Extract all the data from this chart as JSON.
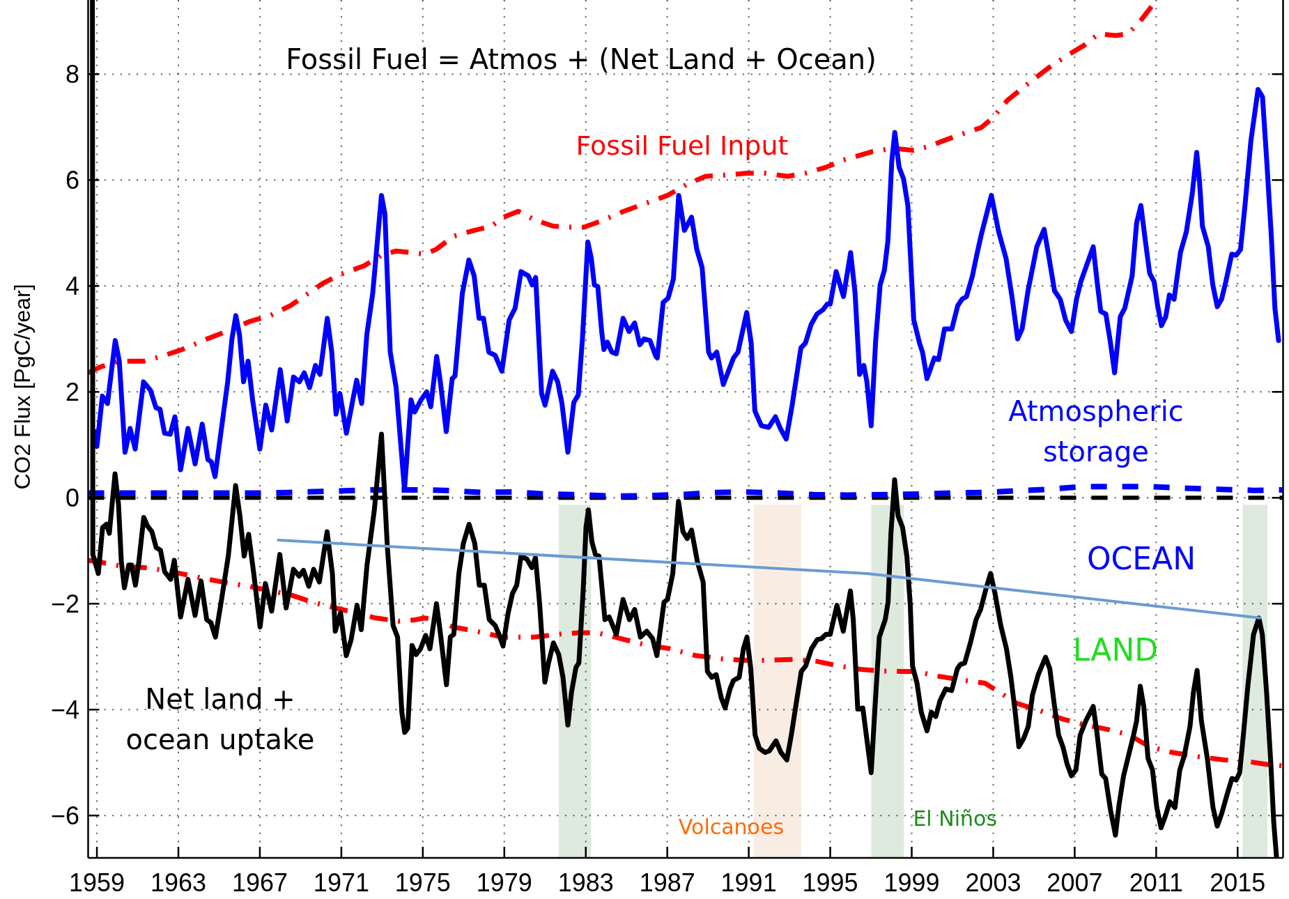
{
  "chart_data": {
    "type": "line",
    "title": "Fossil Fuel = Atmos + (Net Land + Ocean)",
    "ylabel": "CO2 Flux [PgC/year]",
    "xlim": [
      1958.57,
      2017.23
    ],
    "ylim": [
      -6.8,
      9.4
    ],
    "xticks": [
      1959,
      1963,
      1967,
      1971,
      1975,
      1979,
      1983,
      1987,
      1991,
      1995,
      1999,
      2003,
      2007,
      2011,
      2015
    ],
    "yticks": [
      {
        "value": -6,
        "label": "−6"
      },
      {
        "value": -4,
        "label": "−4"
      },
      {
        "value": -2,
        "label": "−2"
      },
      0,
      2,
      4,
      6,
      8
    ],
    "grid": true,
    "marker": "none",
    "series": [
      {
        "name": "Fossil Fuel Input",
        "color": "#ff0000",
        "line_style": "dashed",
        "x": [
          1958.58,
          1959.16,
          1960.02,
          1960.6,
          1961.32,
          1962.32,
          1963.19,
          1964.34,
          1965.49,
          1966.5,
          1967.5,
          1968.51,
          1969.37,
          1970.09,
          1970.96,
          1972.11,
          1972.97,
          1973.69,
          1974.41,
          1975.1,
          1975.65,
          1976.51,
          1977.52,
          1978.38,
          1978.96,
          1979.68,
          1980.54,
          1981.4,
          1982.27,
          1982.91,
          1983.71,
          1984.86,
          1986.01,
          1987.01,
          1988.02,
          1988.88,
          1990.04,
          1990.9,
          1991.76,
          1992.91,
          1993.78,
          1994.78,
          1995.65,
          1996.3,
          1997.09,
          1998.09,
          1999.1,
          1999.96,
          2000.68,
          2001.69,
          2002.41,
          2002.99,
          2003.71,
          2004.71,
          2005.72,
          2006.58,
          2007.45,
          2008.17,
          2009.03,
          2009.6,
          2010.18,
          2010.9,
          2011.11
        ],
        "values": [
          2.36,
          2.47,
          2.57,
          2.58,
          2.58,
          2.69,
          2.8,
          2.99,
          3.16,
          3.33,
          3.44,
          3.63,
          3.86,
          4.05,
          4.22,
          4.38,
          4.58,
          4.66,
          4.63,
          4.6,
          4.69,
          4.94,
          5.05,
          5.13,
          5.3,
          5.41,
          5.24,
          5.13,
          5.11,
          5.11,
          5.22,
          5.41,
          5.57,
          5.71,
          5.93,
          6.07,
          6.1,
          6.13,
          6.13,
          6.07,
          6.13,
          6.24,
          6.38,
          6.45,
          6.54,
          6.6,
          6.56,
          6.65,
          6.76,
          6.9,
          6.99,
          7.18,
          7.51,
          7.82,
          8.12,
          8.34,
          8.54,
          8.76,
          8.73,
          8.76,
          8.98,
          9.34,
          9.4
        ]
      },
      {
        "color": "#ff0000",
        "line_style": "dashed",
        "x": [
          1958.57,
          1959.07,
          1960.2,
          1961.34,
          1962.33,
          1963.47,
          1964.46,
          1965.6,
          1966.45,
          1967.58,
          1968.57,
          1969.57,
          1970.7,
          1971.7,
          1972.69,
          1973.82,
          1974.53,
          1975.07,
          1975.64,
          1976.49,
          1977.62,
          1978.9,
          1980.46,
          1981.6,
          1982.59,
          1983.58,
          1984.72,
          1985.85,
          1987.13,
          1988.4,
          1989.68,
          1990.82,
          1991.81,
          1993.23,
          1994.36,
          1995.5,
          1996.5,
          1997.5,
          1998.5,
          1999.18,
          2000.32,
          2001.6,
          2002.59,
          2003.3,
          2004.15,
          2005.28,
          2006.42,
          2007.55,
          2008.69,
          2009.68,
          2010.67,
          2011.8,
          2013.09,
          2014.36,
          2015.5,
          2016.35,
          2017.2
        ],
        "values": [
          -1.18,
          -1.21,
          -1.29,
          -1.32,
          -1.37,
          -1.46,
          -1.54,
          -1.62,
          -1.67,
          -1.76,
          -1.84,
          -1.97,
          -2.08,
          -2.17,
          -2.27,
          -2.33,
          -2.31,
          -2.27,
          -2.3,
          -2.44,
          -2.52,
          -2.63,
          -2.63,
          -2.58,
          -2.55,
          -2.55,
          -2.66,
          -2.77,
          -2.85,
          -2.98,
          -3.04,
          -3.07,
          -3.07,
          -3.05,
          -3.09,
          -3.18,
          -3.24,
          -3.27,
          -3.28,
          -3.28,
          -3.37,
          -3.45,
          -3.5,
          -3.67,
          -3.88,
          -4.02,
          -4.18,
          -4.29,
          -4.38,
          -4.48,
          -4.7,
          -4.81,
          -4.89,
          -4.95,
          -4.98,
          -5.03,
          -5.06
        ]
      },
      {
        "color": "#0000ff",
        "line_style": "dashed",
        "x": [
          1958.57,
          1962,
          1967,
          1968.4,
          1970,
          1972.7,
          1974.5,
          1976.1,
          1977.9,
          1979.5,
          1981,
          1982.6,
          1984.3,
          1986.1,
          1987.7,
          1989.3,
          1990.8,
          1992.5,
          1994.2,
          1995.8,
          1997.8,
          1999.3,
          2000.9,
          2002.6,
          2004.1,
          2005.7,
          2007.3,
          2009.1,
          2010.7,
          2012.4,
          2014.1,
          2015.8,
          2017.2
        ],
        "values": [
          0.09,
          0.09,
          0.09,
          0.1,
          0.12,
          0.15,
          0.15,
          0.14,
          0.1,
          0.11,
          0.07,
          0.06,
          0.03,
          0.04,
          0.06,
          0.1,
          0.11,
          0.09,
          0.06,
          0.05,
          0.06,
          0.07,
          0.09,
          0.1,
          0.13,
          0.16,
          0.21,
          0.21,
          0.21,
          0.18,
          0.16,
          0.14,
          0.15
        ]
      },
      {
        "name": "Atmospheric storage",
        "color": "#0000ff",
        "line_style": "solid",
        "x": [
          1958.88,
          1959.0,
          1959.27,
          1959.52,
          1959.9,
          1960.1,
          1960.38,
          1960.63,
          1960.88,
          1961.29,
          1961.63,
          1961.9,
          1962.1,
          1962.32,
          1962.6,
          1962.83,
          1963.11,
          1963.47,
          1963.82,
          1964.17,
          1964.45,
          1964.62,
          1964.8,
          1965.42,
          1965.63,
          1965.82,
          1966.0,
          1966.2,
          1966.42,
          1966.64,
          1967.0,
          1967.29,
          1967.58,
          1968.0,
          1968.34,
          1968.65,
          1968.94,
          1969.18,
          1969.44,
          1969.73,
          1969.95,
          1970.31,
          1970.53,
          1970.74,
          1970.93,
          1971.25,
          1971.75,
          1972.0,
          1972.25,
          1972.54,
          1972.97,
          1973.14,
          1973.4,
          1973.69,
          1974.1,
          1974.42,
          1974.6,
          1974.93,
          1975.19,
          1975.39,
          1975.68,
          1975.86,
          1976.15,
          1976.44,
          1976.58,
          1976.94,
          1977.26,
          1977.52,
          1977.76,
          1977.98,
          1978.24,
          1978.55,
          1978.88,
          1979.24,
          1979.53,
          1979.82,
          1980.18,
          1980.37,
          1980.54,
          1980.83,
          1981.0,
          1981.37,
          1981.62,
          1981.83,
          1982.12,
          1982.41,
          1982.63,
          1982.84,
          1983.1,
          1983.27,
          1983.42,
          1983.59,
          1983.78,
          1983.89,
          1984.06,
          1984.28,
          1984.5,
          1984.83,
          1985.12,
          1985.4,
          1985.65,
          1985.86,
          1986.15,
          1986.44,
          1986.51,
          1986.8,
          1987.04,
          1987.3,
          1987.56,
          1987.84,
          1988.19,
          1988.45,
          1988.71,
          1989.03,
          1989.17,
          1989.43,
          1989.75,
          1990.25,
          1990.47,
          1990.9,
          1991.12,
          1991.3,
          1991.62,
          1991.98,
          1992.31,
          1992.55,
          1992.84,
          1993.13,
          1993.56,
          1993.78,
          1994.06,
          1994.35,
          1994.64,
          1994.86,
          1995.0,
          1995.29,
          1995.65,
          1996.0,
          1996.22,
          1996.44,
          1996.65,
          1996.8,
          1997.01,
          1997.23,
          1997.45,
          1997.66,
          1997.83,
          1998.02,
          1998.17,
          1998.38,
          1998.6,
          1998.81,
          1999.1,
          1999.39,
          1999.53,
          1999.75,
          2000.11,
          2000.32,
          2000.61,
          2000.97,
          2001.26,
          2001.47,
          2001.69,
          2001.98,
          2002.19,
          2002.41,
          2002.91,
          2003.27,
          2003.63,
          2003.92,
          2004.2,
          2004.42,
          2004.71,
          2005.14,
          2005.5,
          2005.72,
          2006.01,
          2006.29,
          2006.55,
          2006.84,
          2007.09,
          2007.3,
          2007.66,
          2007.91,
          2008.1,
          2008.28,
          2008.53,
          2008.74,
          2008.96,
          2009.24,
          2009.46,
          2009.82,
          2010.04,
          2010.25,
          2010.47,
          2010.68,
          2010.9,
          2011.07,
          2011.26,
          2011.47,
          2011.65,
          2011.88,
          2012.19,
          2012.48,
          2012.77,
          2012.99,
          2013.13,
          2013.27,
          2013.56,
          2013.78,
          2014.0,
          2014.21,
          2014.42,
          2014.71,
          2014.93,
          2015.14,
          2015.36,
          2015.65,
          2016.0,
          2016.22,
          2016.44,
          2016.65,
          2016.83,
          2017.01
        ],
        "values": [
          1.25,
          0.97,
          1.92,
          1.78,
          2.97,
          2.58,
          0.86,
          1.31,
          0.92,
          2.19,
          2.03,
          1.7,
          1.67,
          1.22,
          1.2,
          1.53,
          0.53,
          1.31,
          0.64,
          1.39,
          0.72,
          0.68,
          0.4,
          2.19,
          3.0,
          3.44,
          3.08,
          2.19,
          2.58,
          1.86,
          0.92,
          1.75,
          1.28,
          2.42,
          1.45,
          2.28,
          2.19,
          2.36,
          2.08,
          2.5,
          2.33,
          3.39,
          2.75,
          1.58,
          1.97,
          1.22,
          2.22,
          1.78,
          3.08,
          3.86,
          5.71,
          5.35,
          2.75,
          2.08,
          0.15,
          1.85,
          1.62,
          1.86,
          2.0,
          1.72,
          2.67,
          2.19,
          1.25,
          2.25,
          2.3,
          3.86,
          4.49,
          4.19,
          3.39,
          3.39,
          2.75,
          2.69,
          2.39,
          3.36,
          3.58,
          4.27,
          4.19,
          4.02,
          4.16,
          1.97,
          1.75,
          2.39,
          2.19,
          1.78,
          0.86,
          1.8,
          1.94,
          3.03,
          4.83,
          4.52,
          4.02,
          3.99,
          3.14,
          2.8,
          2.94,
          2.75,
          2.72,
          3.39,
          3.14,
          3.3,
          2.89,
          3.0,
          2.97,
          2.67,
          2.64,
          3.69,
          3.77,
          4.13,
          5.71,
          5.05,
          5.3,
          4.69,
          4.35,
          2.75,
          2.64,
          2.75,
          2.14,
          2.64,
          2.75,
          3.5,
          2.92,
          1.64,
          1.36,
          1.33,
          1.53,
          1.31,
          1.11,
          1.75,
          2.83,
          2.92,
          3.27,
          3.47,
          3.55,
          3.66,
          3.66,
          4.27,
          3.8,
          4.63,
          3.86,
          2.33,
          2.5,
          2.19,
          1.36,
          2.97,
          4.02,
          4.3,
          4.85,
          6.35,
          6.9,
          6.24,
          6.02,
          5.52,
          3.36,
          2.91,
          2.75,
          2.25,
          2.64,
          2.61,
          3.19,
          3.19,
          3.63,
          3.75,
          3.8,
          4.19,
          4.58,
          4.96,
          5.71,
          5.02,
          4.52,
          3.8,
          3.0,
          3.19,
          3.91,
          4.74,
          5.07,
          4.58,
          3.91,
          3.75,
          3.36,
          3.14,
          3.75,
          4.08,
          4.47,
          4.74,
          4.08,
          3.52,
          3.47,
          2.97,
          2.36,
          3.42,
          3.58,
          4.19,
          5.19,
          5.52,
          4.85,
          4.24,
          4.08,
          3.63,
          3.25,
          3.42,
          3.83,
          3.75,
          4.63,
          5.02,
          5.74,
          6.52,
          5.96,
          5.13,
          4.74,
          4.02,
          3.61,
          3.75,
          4.08,
          4.6,
          4.58,
          4.69,
          5.52,
          6.74,
          7.71,
          7.57,
          6.29,
          4.96,
          3.58,
          2.97
        ]
      },
      {
        "name": "Net land + ocean uptake",
        "color": "#000000",
        "line_style": "solid",
        "x": [
          1958.78,
          1958.8,
          1959.07,
          1959.28,
          1959.47,
          1959.61,
          1959.89,
          1960.06,
          1960.2,
          1960.35,
          1960.56,
          1960.7,
          1960.89,
          1961.06,
          1961.3,
          1961.48,
          1961.7,
          1961.91,
          1962.12,
          1962.33,
          1962.62,
          1962.8,
          1963.11,
          1963.47,
          1963.82,
          1964.11,
          1964.39,
          1964.6,
          1964.82,
          1965.14,
          1965.45,
          1965.81,
          1966.02,
          1966.23,
          1966.45,
          1966.7,
          1967.01,
          1967.27,
          1967.58,
          1967.98,
          1968.29,
          1968.65,
          1968.93,
          1969.14,
          1969.4,
          1969.64,
          1969.92,
          1970.3,
          1970.56,
          1970.7,
          1970.96,
          1971.24,
          1971.48,
          1971.77,
          1971.98,
          1972.26,
          1972.62,
          1972.97,
          1973.26,
          1973.54,
          1973.76,
          1973.97,
          1974.11,
          1974.26,
          1974.47,
          1974.67,
          1974.89,
          1975.14,
          1975.35,
          1975.67,
          1975.85,
          1976.16,
          1976.35,
          1976.52,
          1976.77,
          1976.99,
          1977.27,
          1977.55,
          1977.77,
          1978.02,
          1978.26,
          1978.55,
          1978.74,
          1978.94,
          1979.18,
          1979.4,
          1979.61,
          1979.82,
          1980.11,
          1980.35,
          1980.53,
          1980.74,
          1980.99,
          1981.17,
          1981.41,
          1981.67,
          1981.88,
          1982.12,
          1982.3,
          1982.52,
          1982.66,
          1982.87,
          1983.01,
          1983.13,
          1983.3,
          1983.47,
          1983.65,
          1983.94,
          1984.15,
          1984.5,
          1984.83,
          1985.14,
          1985.4,
          1985.68,
          1985.99,
          1986.28,
          1986.49,
          1986.84,
          1987.01,
          1987.27,
          1987.55,
          1987.77,
          1987.98,
          1988.19,
          1988.48,
          1988.76,
          1988.97,
          1989.18,
          1989.4,
          1989.65,
          1989.84,
          1990.08,
          1990.25,
          1990.53,
          1990.74,
          1990.91,
          1991.1,
          1991.31,
          1991.52,
          1991.8,
          1992.01,
          1992.34,
          1992.58,
          1992.87,
          1993.09,
          1993.37,
          1993.58,
          1993.79,
          1994.08,
          1994.36,
          1994.57,
          1994.79,
          1995.0,
          1995.33,
          1995.64,
          1995.99,
          1996.13,
          1996.35,
          1996.6,
          1996.77,
          1997.01,
          1997.2,
          1997.41,
          1997.7,
          1997.84,
          1997.98,
          1998.16,
          1998.33,
          1998.55,
          1998.76,
          1998.93,
          1999.04,
          1999.26,
          1999.47,
          1999.75,
          1999.96,
          2000.18,
          2000.39,
          2000.67,
          2000.96,
          2001.24,
          2001.38,
          2001.6,
          2001.88,
          2002.16,
          2002.38,
          2002.66,
          2002.87,
          2003.09,
          2003.37,
          2003.65,
          2003.87,
          2004.08,
          2004.26,
          2004.5,
          2004.72,
          2004.93,
          2005.21,
          2005.57,
          2005.78,
          2005.99,
          2006.21,
          2006.42,
          2006.63,
          2006.84,
          2007.06,
          2007.27,
          2007.55,
          2007.91,
          2008.09,
          2008.33,
          2008.52,
          2008.76,
          2009.0,
          2009.18,
          2009.4,
          2009.61,
          2009.89,
          2010.04,
          2010.22,
          2010.39,
          2010.6,
          2010.82,
          2011.03,
          2011.24,
          2011.45,
          2011.67,
          2011.92,
          2012.16,
          2012.38,
          2012.66,
          2012.83,
          2013.01,
          2013.22,
          2013.51,
          2013.79,
          2014.0,
          2014.22,
          2014.5,
          2014.72,
          2014.93,
          2015.1,
          2015.28,
          2015.5,
          2015.78,
          2016.04,
          2016.21,
          2016.42,
          2016.63,
          2016.77,
          2016.91
        ],
        "values": [
          9.4,
          -1.07,
          -1.43,
          -0.56,
          -0.5,
          -0.67,
          0.45,
          -0.12,
          -1.21,
          -1.7,
          -1.27,
          -1.27,
          -1.65,
          -1.21,
          -0.37,
          -0.53,
          -0.64,
          -0.94,
          -0.99,
          -1.4,
          -1.54,
          -1.18,
          -2.25,
          -1.54,
          -2.22,
          -1.57,
          -2.3,
          -2.36,
          -2.63,
          -1.87,
          -1.1,
          0.23,
          -0.34,
          -1.1,
          -0.69,
          -1.43,
          -2.44,
          -1.62,
          -2.14,
          -1.07,
          -2.08,
          -1.35,
          -1.48,
          -1.37,
          -1.67,
          -1.35,
          -1.59,
          -0.64,
          -1.43,
          -2.52,
          -2.17,
          -2.98,
          -2.68,
          -2.03,
          -2.49,
          -1.27,
          -0.23,
          1.2,
          -0.94,
          -2.41,
          -2.63,
          -4.05,
          -4.43,
          -4.35,
          -2.79,
          -2.96,
          -2.85,
          -2.6,
          -2.85,
          -2.0,
          -2.52,
          -3.53,
          -2.63,
          -2.58,
          -1.43,
          -0.86,
          -0.5,
          -0.86,
          -1.65,
          -1.65,
          -2.3,
          -2.41,
          -2.58,
          -2.8,
          -2.19,
          -1.81,
          -1.65,
          -1.1,
          -1.16,
          -1.32,
          -1.13,
          -2.03,
          -3.48,
          -3.12,
          -2.74,
          -2.96,
          -3.39,
          -4.29,
          -3.67,
          -3.2,
          -3.12,
          -1.76,
          -0.56,
          -0.23,
          -0.83,
          -1.07,
          -1.1,
          -2.3,
          -2.25,
          -2.58,
          -1.92,
          -2.3,
          -2.11,
          -2.63,
          -2.52,
          -2.66,
          -2.98,
          -1.97,
          -1.92,
          -1.43,
          -0.07,
          -0.64,
          -0.77,
          -0.61,
          -1.21,
          -1.59,
          -3.28,
          -3.39,
          -3.34,
          -3.78,
          -3.97,
          -3.61,
          -3.45,
          -3.39,
          -2.85,
          -2.63,
          -3.23,
          -4.48,
          -4.73,
          -4.81,
          -4.78,
          -4.59,
          -4.81,
          -4.95,
          -4.48,
          -3.78,
          -3.28,
          -3.18,
          -2.85,
          -2.68,
          -2.66,
          -2.58,
          -2.58,
          -2.03,
          -2.52,
          -1.76,
          -2.3,
          -3.99,
          -3.97,
          -4.48,
          -5.19,
          -3.94,
          -2.63,
          -2.3,
          -1.97,
          -0.67,
          0.34,
          -0.34,
          -0.56,
          -1.1,
          -2.03,
          -3.18,
          -3.5,
          -4.05,
          -4.4,
          -4.05,
          -4.13,
          -3.83,
          -3.61,
          -3.64,
          -3.23,
          -3.15,
          -3.12,
          -2.74,
          -2.3,
          -2.11,
          -1.7,
          -1.43,
          -1.81,
          -2.41,
          -2.85,
          -3.39,
          -4.05,
          -4.7,
          -4.54,
          -4.32,
          -3.72,
          -3.34,
          -3.01,
          -3.23,
          -3.88,
          -4.48,
          -4.7,
          -5.03,
          -5.25,
          -5.14,
          -4.48,
          -4.21,
          -3.94,
          -4.43,
          -5.22,
          -5.3,
          -5.9,
          -6.37,
          -5.79,
          -5.25,
          -4.92,
          -4.48,
          -4.21,
          -3.56,
          -3.94,
          -4.92,
          -5.14,
          -5.85,
          -6.23,
          -6.01,
          -5.74,
          -5.85,
          -5.14,
          -4.87,
          -4.32,
          -3.67,
          -3.26,
          -4.21,
          -4.92,
          -5.85,
          -6.2,
          -5.96,
          -5.58,
          -5.3,
          -5.33,
          -5.19,
          -4.48,
          -3.56,
          -2.58,
          -2.27,
          -2.58,
          -3.67,
          -5.03,
          -6.12,
          -6.8
        ]
      },
      {
        "color": "#6b9bd2",
        "line_style": "solid",
        "x": [
          1967.9,
          1996.8,
          2016.1
        ],
        "values": [
          -0.8,
          -1.43,
          -2.27
        ]
      }
    ],
    "ref_lines": [
      {
        "axis": "y",
        "value": 0,
        "color": "#000000",
        "line_style": "dashed"
      }
    ],
    "bands": [
      {
        "axis": "x",
        "from": 1981.67,
        "to": 1983.26,
        "color": "#dfeadf"
      },
      {
        "axis": "x",
        "from": 1991.24,
        "to": 1993.58,
        "color": "#f9ede3",
        "label": "Volcanoes"
      },
      {
        "axis": "x",
        "from": 1997.01,
        "to": 1998.62,
        "color": "#dfeadf",
        "label": "El Niños"
      },
      {
        "axis": "x",
        "from": 2015.24,
        "to": 2016.46,
        "color": "#dfeadf"
      }
    ],
    "annotations": [
      "OCEAN",
      "LAND"
    ]
  }
}
